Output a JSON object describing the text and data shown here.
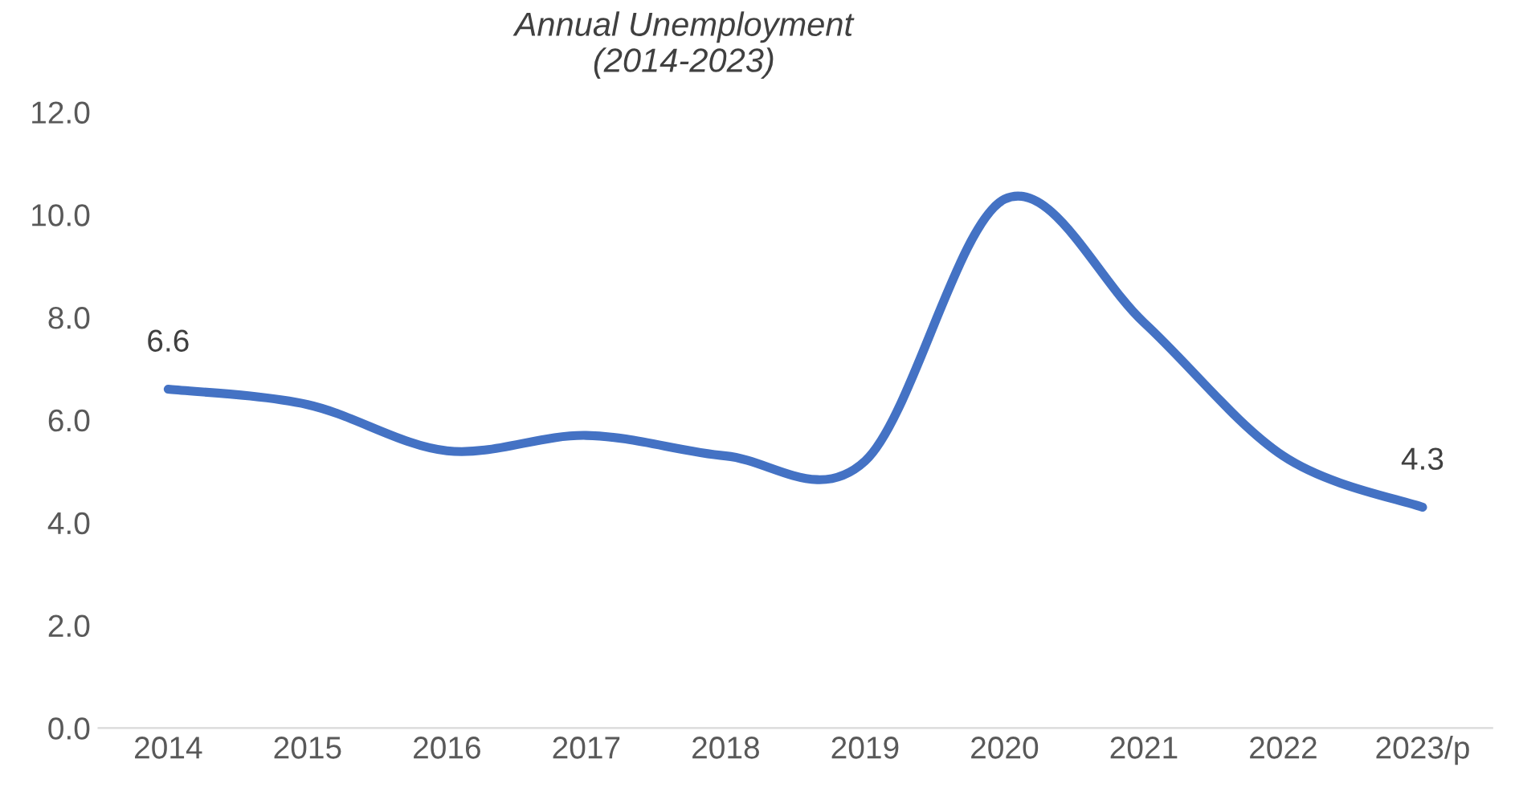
{
  "chart_data": {
    "type": "line",
    "title": "Annual Unemployment\n(2014-2023)",
    "categories": [
      "2014",
      "2015",
      "2016",
      "2017",
      "2018",
      "2019",
      "2020",
      "2021",
      "2022",
      "2023/p"
    ],
    "series": [
      {
        "color": "#4472c4",
        "values": [
          6.6,
          6.3,
          5.4,
          5.7,
          5.3,
          5.2,
          10.3,
          7.9,
          5.3,
          4.3
        ],
        "value_labels": [
          "6.6",
          null,
          null,
          null,
          null,
          null,
          null,
          null,
          null,
          "4.3"
        ]
      }
    ],
    "ylim": [
      0,
      12
    ],
    "yticks": [
      {
        "value": 0,
        "label": "0.0"
      },
      {
        "value": 2,
        "label": "2.0"
      },
      {
        "value": 4,
        "label": "4.0"
      },
      {
        "value": 6,
        "label": "6.0"
      },
      {
        "value": 8,
        "label": "8.0"
      },
      {
        "value": 10,
        "label": "10.0"
      },
      {
        "value": 12,
        "label": "12.0"
      }
    ],
    "grid": false,
    "legend": false,
    "marker": "none",
    "line_style": "solid"
  }
}
